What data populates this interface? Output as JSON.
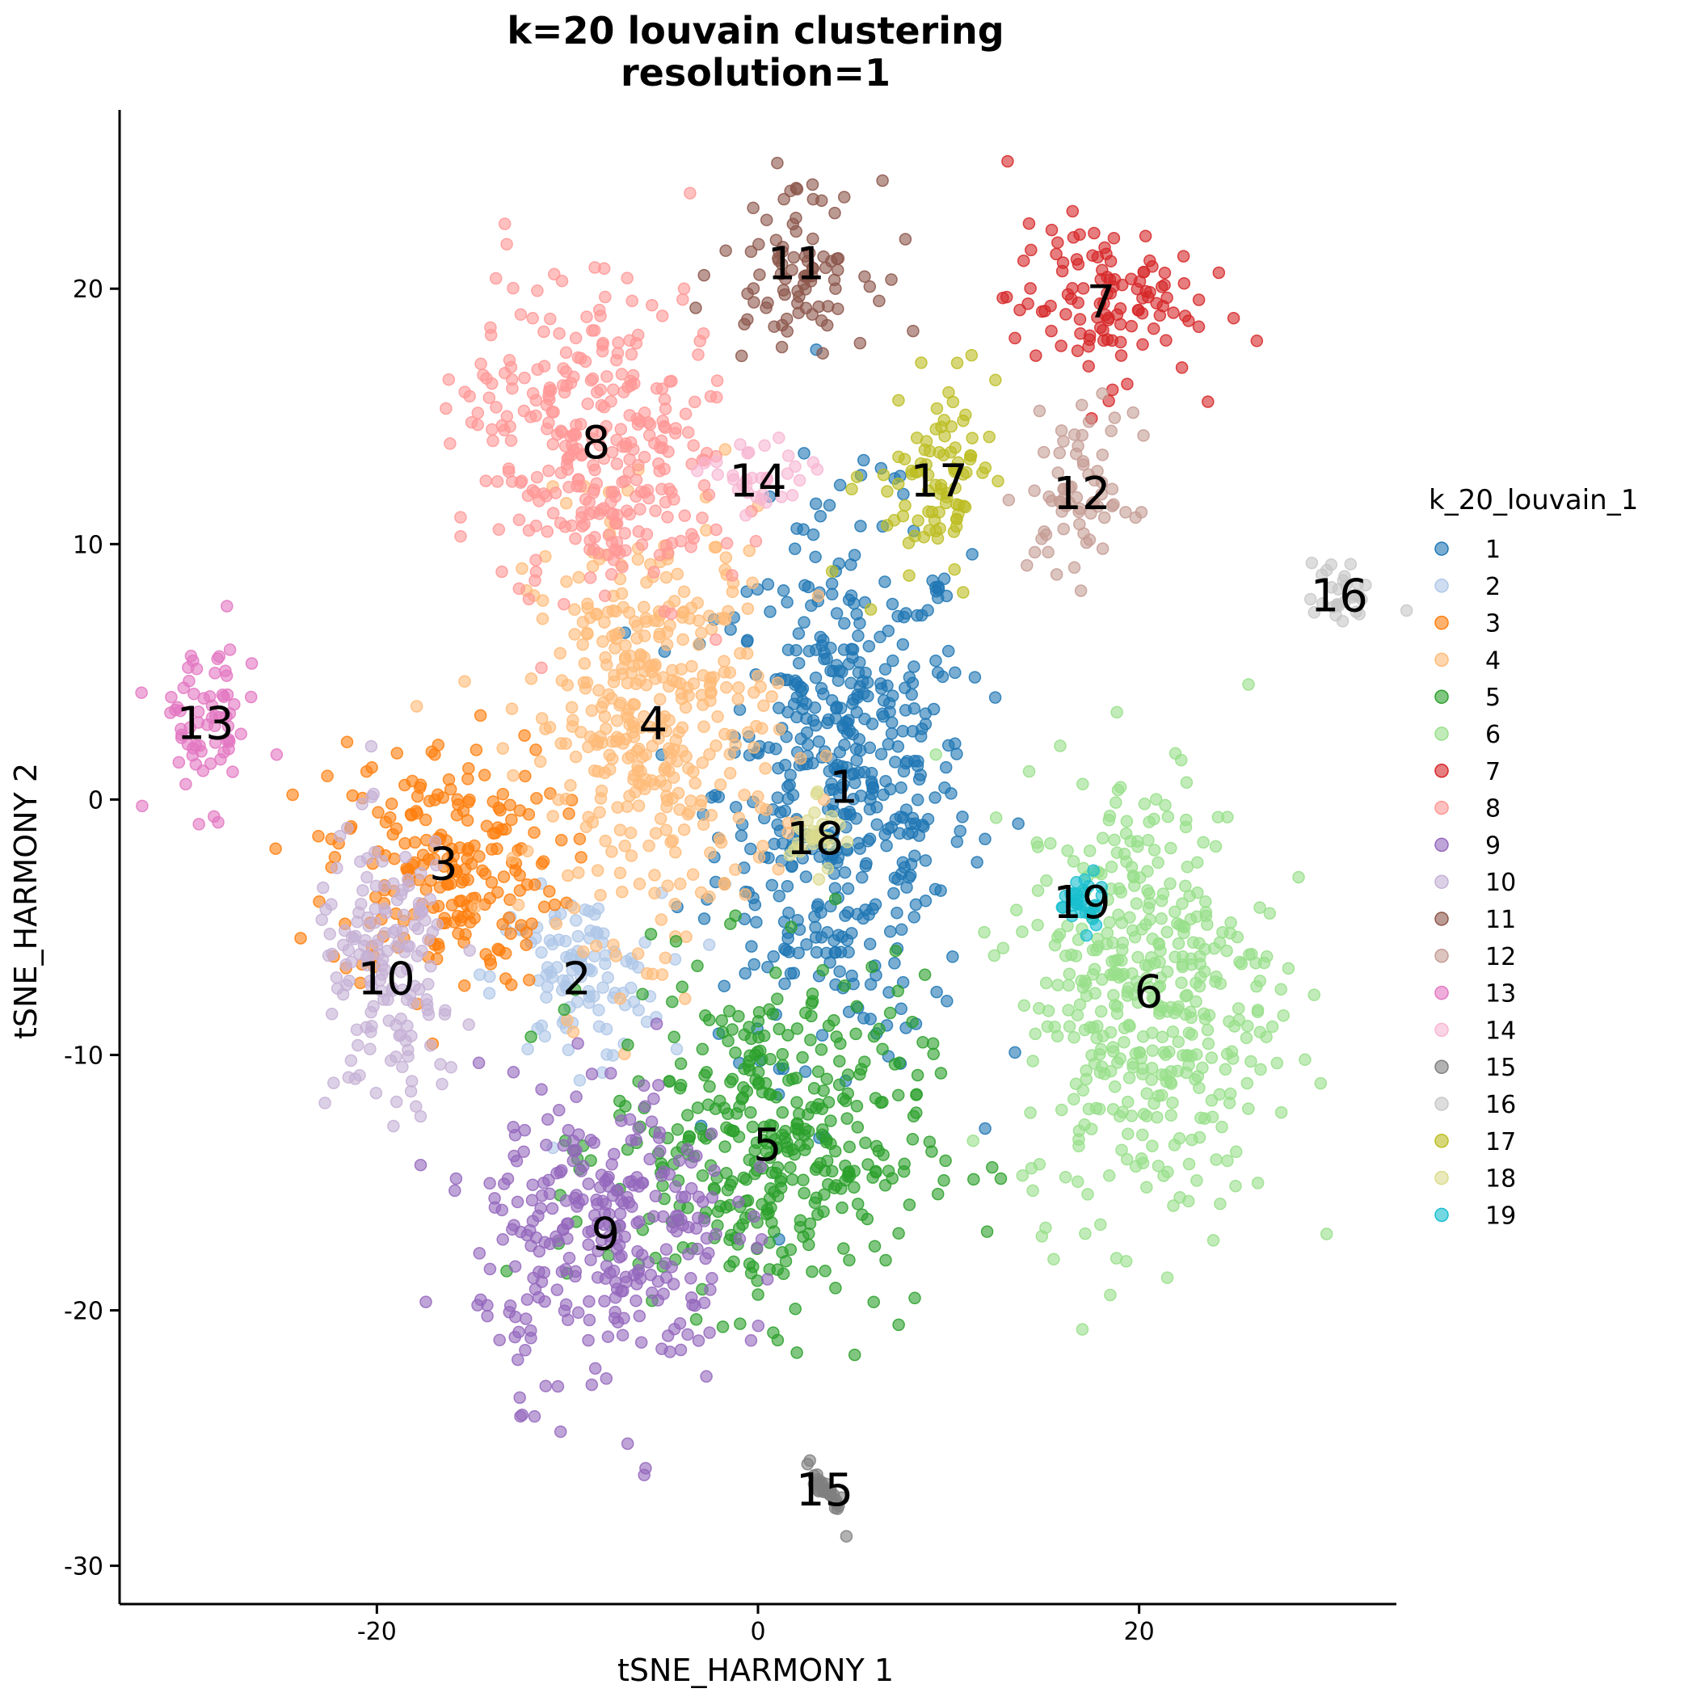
{
  "chart_data": {
    "type": "scatter",
    "title_line1": "k=20 louvain clustering",
    "title_line2": "resolution=1",
    "xlabel": "tSNE_HARMONY 1",
    "ylabel": "tSNE_HARMONY 2",
    "xlim": [
      -33.5,
      33.5
    ],
    "ylim": [
      -31.5,
      27.0
    ],
    "xticks": [
      -20,
      0,
      20
    ],
    "yticks": [
      -30,
      -20,
      -10,
      0,
      10,
      20
    ],
    "grid": false,
    "legend": {
      "title": "k_20_louvain_1",
      "position": "right"
    },
    "clusters": [
      {
        "name": "1",
        "color": "#1f77b4",
        "label_x": 4.5,
        "label_y": 0.5,
        "rx": 6.0,
        "ry": 9.5,
        "angle": 0
      },
      {
        "name": "2",
        "color": "#aec7e8",
        "label_x": -9.5,
        "label_y": -7.0,
        "rx": 4.0,
        "ry": 3.0,
        "angle": 0
      },
      {
        "name": "3",
        "color": "#ff7f0e",
        "label_x": -16.5,
        "label_y": -2.5,
        "rx": 5.5,
        "ry": 4.5,
        "angle": 0
      },
      {
        "name": "4",
        "color": "#ffbb78",
        "label_x": -5.5,
        "label_y": 3.0,
        "rx": 6.0,
        "ry": 7.5,
        "angle": 0
      },
      {
        "name": "5",
        "color": "#2ca02c",
        "label_x": 0.5,
        "label_y": -13.5,
        "rx": 7.5,
        "ry": 6.0,
        "angle": 0
      },
      {
        "name": "6",
        "color": "#98df8a",
        "label_x": 20.5,
        "label_y": -7.5,
        "rx": 6.0,
        "ry": 8.0,
        "angle": 0
      },
      {
        "name": "7",
        "color": "#d62728",
        "label_x": 18.0,
        "label_y": 19.5,
        "rx": 4.5,
        "ry": 2.8,
        "angle": 0
      },
      {
        "name": "8",
        "color": "#ff9896",
        "label_x": -8.5,
        "label_y": 14.0,
        "rx": 6.5,
        "ry": 5.5,
        "angle": -20
      },
      {
        "name": "9",
        "color": "#9467bd",
        "label_x": -8.0,
        "label_y": -17.0,
        "rx": 6.0,
        "ry": 5.5,
        "angle": 0
      },
      {
        "name": "10",
        "color": "#c5b0d5",
        "label_x": -19.5,
        "label_y": -7.0,
        "rx": 3.5,
        "ry": 5.0,
        "angle": 0
      },
      {
        "name": "11",
        "color": "#8c564b",
        "label_x": 2.0,
        "label_y": 21.0,
        "rx": 3.5,
        "ry": 2.8,
        "angle": 0
      },
      {
        "name": "12",
        "color": "#c49c94",
        "label_x": 17.0,
        "label_y": 12.0,
        "rx": 2.5,
        "ry": 3.0,
        "angle": 0
      },
      {
        "name": "13",
        "color": "#e377c2",
        "label_x": -29.0,
        "label_y": 3.0,
        "rx": 2.5,
        "ry": 3.0,
        "angle": 0
      },
      {
        "name": "14",
        "color": "#f7b6d2",
        "label_x": 0.0,
        "label_y": 12.5,
        "rx": 2.5,
        "ry": 1.5,
        "angle": 0
      },
      {
        "name": "15",
        "color": "#7f7f7f",
        "label_x": 3.5,
        "label_y": -27.0,
        "rx": 1.5,
        "ry": 0.3,
        "angle": -45
      },
      {
        "name": "16",
        "color": "#c7c7c7",
        "label_x": 30.5,
        "label_y": 8.0,
        "rx": 1.5,
        "ry": 1.2,
        "angle": 0
      },
      {
        "name": "17",
        "color": "#bcbd22",
        "label_x": 9.5,
        "label_y": 12.5,
        "rx": 2.5,
        "ry": 4.0,
        "angle": -30
      },
      {
        "name": "18",
        "color": "#dbdb8d",
        "label_x": 3.0,
        "label_y": -1.5,
        "rx": 1.2,
        "ry": 1.2,
        "angle": 0
      },
      {
        "name": "19",
        "color": "#17becf",
        "label_x": 17.0,
        "label_y": -4.0,
        "rx": 1.0,
        "ry": 1.0,
        "angle": 0
      }
    ]
  }
}
